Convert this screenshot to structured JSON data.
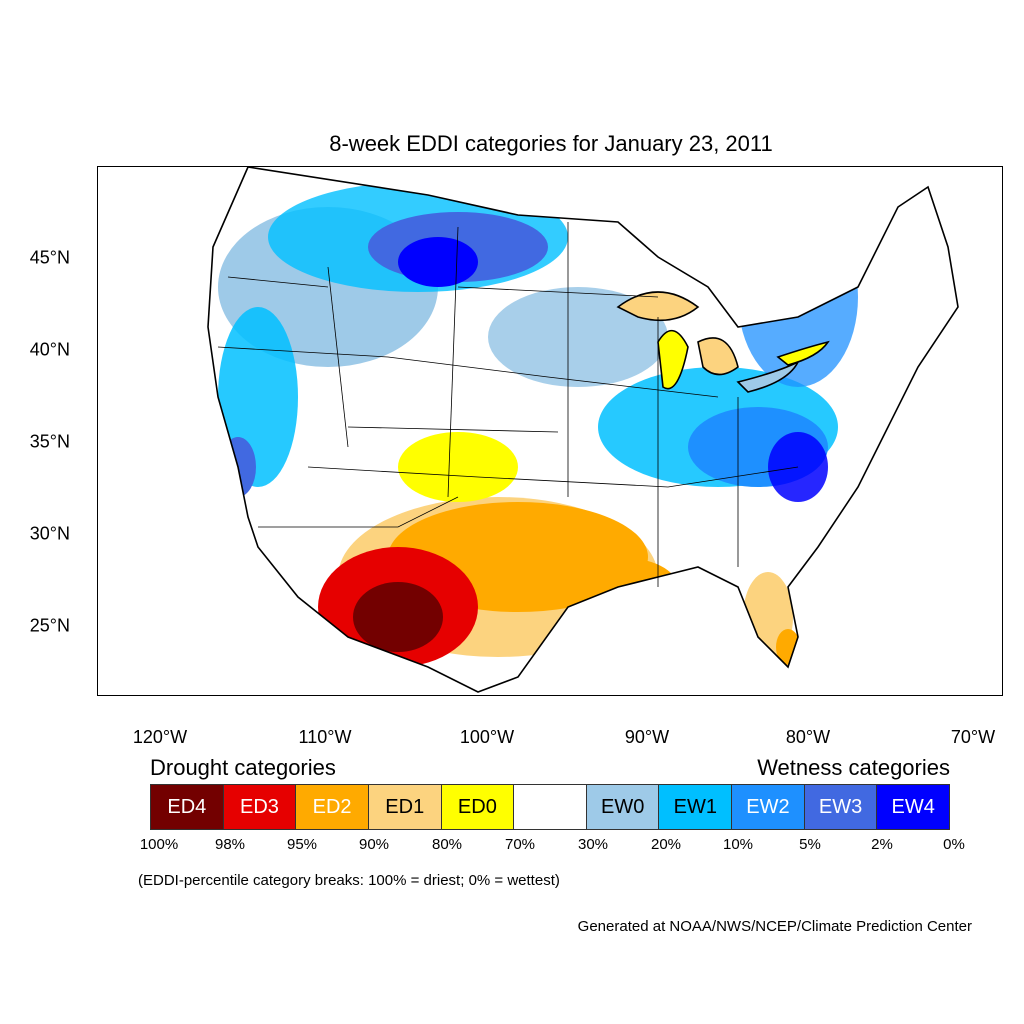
{
  "title": "8-week EDDI categories for January 23, 2011",
  "lat_labels": [
    "45°N",
    "40°N",
    "35°N",
    "30°N",
    "25°N"
  ],
  "lon_labels": [
    "120°W",
    "110°W",
    "100°W",
    "90°W",
    "80°W",
    "70°W"
  ],
  "legend": {
    "drought_heading": "Drought categories",
    "wetness_heading": "Wetness categories",
    "categories": [
      {
        "label": "ED4",
        "color": "#730000",
        "text_color": "#ffffff"
      },
      {
        "label": "ED3",
        "color": "#e60000",
        "text_color": "#ffffff"
      },
      {
        "label": "ED2",
        "color": "#ffaa00",
        "text_color": "#ffffff"
      },
      {
        "label": "ED1",
        "color": "#fcd37f",
        "text_color": "#000000"
      },
      {
        "label": "ED0",
        "color": "#ffff00",
        "text_color": "#000000"
      },
      {
        "label": "",
        "color": "#ffffff",
        "text_color": "#000000"
      },
      {
        "label": "EW0",
        "color": "#9ecae8",
        "text_color": "#000000"
      },
      {
        "label": "EW1",
        "color": "#00bfff",
        "text_color": "#000000"
      },
      {
        "label": "EW2",
        "color": "#1e90ff",
        "text_color": "#ffffff"
      },
      {
        "label": "EW3",
        "color": "#4169e1",
        "text_color": "#ffffff"
      },
      {
        "label": "EW4",
        "color": "#0000ff",
        "text_color": "#ffffff"
      }
    ],
    "percentiles": [
      "100%",
      "98%",
      "95%",
      "90%",
      "80%",
      "70%",
      "30%",
      "20%",
      "10%",
      "5%",
      "2%",
      "0%"
    ]
  },
  "note": "(EDDI-percentile category breaks: 100% = driest; 0% = wettest)",
  "credit": "Generated at NOAA/NWS/NCEP/Climate Prediction Center"
}
